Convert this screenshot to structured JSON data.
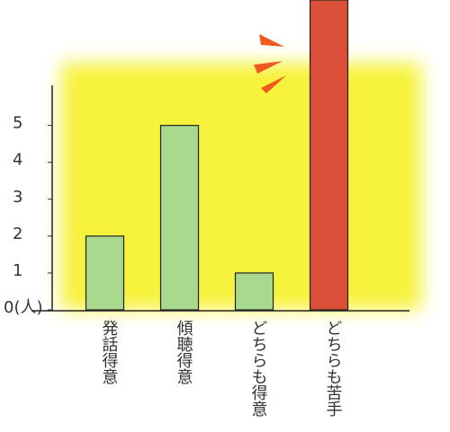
{
  "chart_data": {
    "type": "bar",
    "categories": [
      "発話得意",
      "傾聴得意",
      "どちらも得意",
      "どちらも苦手"
    ],
    "series": [
      {
        "name": null,
        "values": [
          2,
          5,
          1,
          8.4
        ],
        "colors": [
          "#a9d98e",
          "#a9d98e",
          "#a9d98e",
          "#db4f38"
        ]
      }
    ],
    "ylim": [
      0,
      8.4
    ],
    "yticks": [
      {
        "value": 0,
        "label": "0(人)"
      },
      1,
      2,
      3,
      4,
      5
    ]
  }
}
